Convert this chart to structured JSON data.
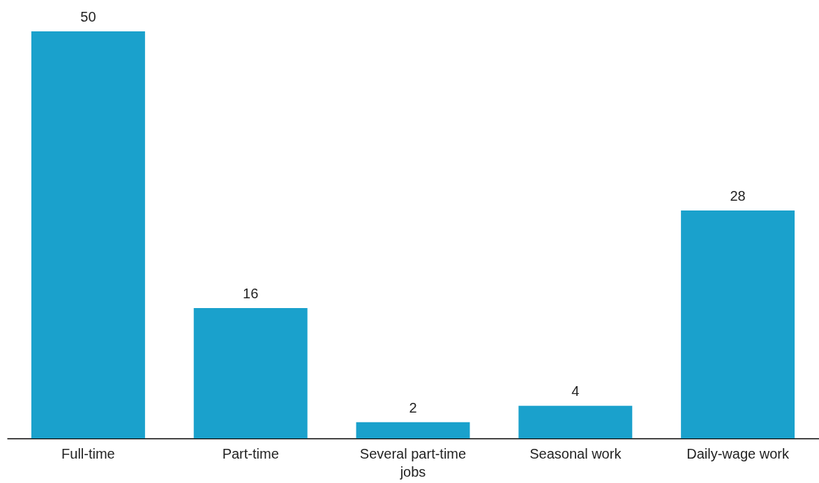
{
  "chart_data": {
    "type": "bar",
    "categories": [
      "Full-time",
      "Part-time",
      "Several part-time jobs",
      "Seasonal work",
      "Daily-wage work"
    ],
    "values": [
      50,
      16,
      2,
      4,
      28
    ],
    "color": "#1aa1cc",
    "data_labels": true
  }
}
